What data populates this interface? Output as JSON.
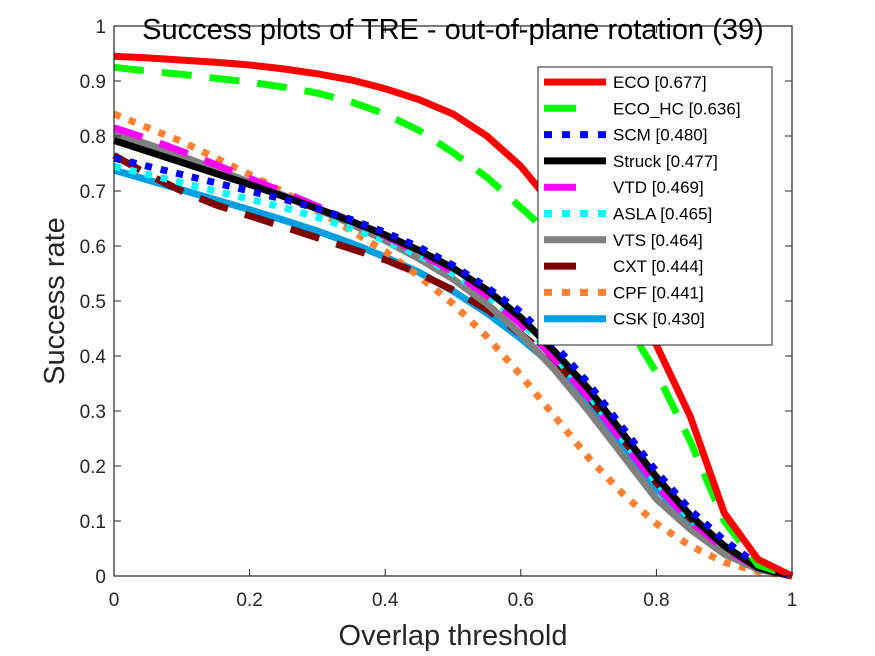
{
  "chart_data": {
    "type": "line",
    "title": "Success plots of TRE - out-of-plane rotation (39)",
    "xlabel": "Overlap threshold",
    "ylabel": "Success rate",
    "xlim": [
      0,
      1
    ],
    "ylim": [
      0,
      1
    ],
    "xticks": [
      "0",
      "0.2",
      "0.4",
      "0.6",
      "0.8",
      "1"
    ],
    "yticks": [
      "0",
      "0.1",
      "0.2",
      "0.3",
      "0.4",
      "0.5",
      "0.6",
      "0.7",
      "0.8",
      "0.9",
      "1"
    ],
    "grid": false,
    "legend_position": "top-right",
    "x": [
      0,
      0.05,
      0.1,
      0.15,
      0.2,
      0.25,
      0.3,
      0.35,
      0.4,
      0.45,
      0.5,
      0.55,
      0.6,
      0.65,
      0.7,
      0.75,
      0.8,
      0.85,
      0.9,
      0.95,
      1
    ],
    "series": [
      {
        "name": "ECO",
        "score": "0.677",
        "label": "ECO [0.677]",
        "color": "#ff0000",
        "style": "solid",
        "values": [
          0.945,
          0.942,
          0.938,
          0.934,
          0.929,
          0.922,
          0.913,
          0.902,
          0.886,
          0.866,
          0.84,
          0.8,
          0.745,
          0.67,
          0.58,
          0.5,
          0.42,
          0.29,
          0.115,
          0.03,
          0.0
        ]
      },
      {
        "name": "ECO_HC",
        "score": "0.636",
        "label": "ECO_HC [0.636]",
        "color": "#00ff00",
        "style": "dashed",
        "values": [
          0.925,
          0.918,
          0.912,
          0.905,
          0.898,
          0.889,
          0.878,
          0.862,
          0.84,
          0.81,
          0.77,
          0.725,
          0.67,
          0.615,
          0.55,
          0.47,
          0.37,
          0.245,
          0.1,
          0.02,
          0.0
        ]
      },
      {
        "name": "SCM",
        "score": "0.480",
        "label": "SCM [0.480]",
        "color": "#0000ff",
        "style": "dotted",
        "values": [
          0.76,
          0.745,
          0.73,
          0.715,
          0.7,
          0.685,
          0.668,
          0.648,
          0.625,
          0.598,
          0.565,
          0.525,
          0.48,
          0.42,
          0.35,
          0.27,
          0.19,
          0.12,
          0.065,
          0.02,
          0.0
        ]
      },
      {
        "name": "Struck",
        "score": "0.477",
        "label": "Struck [0.477]",
        "color": "#000000",
        "style": "solid",
        "values": [
          0.792,
          0.772,
          0.752,
          0.732,
          0.712,
          0.69,
          0.668,
          0.645,
          0.62,
          0.592,
          0.56,
          0.52,
          0.47,
          0.408,
          0.34,
          0.26,
          0.18,
          0.11,
          0.055,
          0.015,
          0.0
        ]
      },
      {
        "name": "VTD",
        "score": "0.469",
        "label": "VTD [0.469]",
        "color": "#ff00ff",
        "style": "dashed",
        "values": [
          0.815,
          0.795,
          0.772,
          0.748,
          0.723,
          0.698,
          0.672,
          0.645,
          0.618,
          0.588,
          0.553,
          0.51,
          0.458,
          0.395,
          0.325,
          0.245,
          0.165,
          0.1,
          0.05,
          0.015,
          0.0
        ]
      },
      {
        "name": "ASLA",
        "score": "0.465",
        "label": "ASLA [0.465]",
        "color": "#00ffff",
        "style": "dotted",
        "values": [
          0.745,
          0.73,
          0.715,
          0.7,
          0.685,
          0.67,
          0.652,
          0.632,
          0.61,
          0.583,
          0.55,
          0.51,
          0.462,
          0.4,
          0.33,
          0.25,
          0.17,
          0.105,
          0.055,
          0.015,
          0.0
        ]
      },
      {
        "name": "VTS",
        "score": "0.464",
        "label": "VTS [0.464]",
        "color": "#808080",
        "style": "solid",
        "values": [
          0.805,
          0.785,
          0.763,
          0.74,
          0.716,
          0.692,
          0.667,
          0.64,
          0.61,
          0.577,
          0.54,
          0.495,
          0.44,
          0.375,
          0.3,
          0.22,
          0.14,
          0.085,
          0.04,
          0.012,
          0.0
        ]
      },
      {
        "name": "CXT",
        "score": "0.444",
        "label": "CXT [0.444]",
        "color": "#800000",
        "style": "dashed",
        "values": [
          0.765,
          0.73,
          0.7,
          0.675,
          0.655,
          0.635,
          0.615,
          0.595,
          0.575,
          0.55,
          0.52,
          0.485,
          0.44,
          0.39,
          0.325,
          0.25,
          0.17,
          0.105,
          0.055,
          0.015,
          0.0
        ]
      },
      {
        "name": "CPF",
        "score": "0.441",
        "label": "CPF [0.441]",
        "color": "#ff8030",
        "style": "dotted",
        "values": [
          0.84,
          0.815,
          0.79,
          0.76,
          0.73,
          0.698,
          0.664,
          0.628,
          0.59,
          0.545,
          0.495,
          0.435,
          0.365,
          0.29,
          0.215,
          0.15,
          0.095,
          0.055,
          0.025,
          0.008,
          0.0
        ]
      },
      {
        "name": "CSK",
        "score": "0.430",
        "label": "CSK [0.430]",
        "color": "#00a0e0",
        "style": "solid",
        "values": [
          0.738,
          0.72,
          0.702,
          0.684,
          0.666,
          0.647,
          0.627,
          0.605,
          0.58,
          0.552,
          0.518,
          0.478,
          0.432,
          0.38,
          0.315,
          0.24,
          0.16,
          0.095,
          0.05,
          0.015,
          0.0
        ]
      }
    ]
  }
}
